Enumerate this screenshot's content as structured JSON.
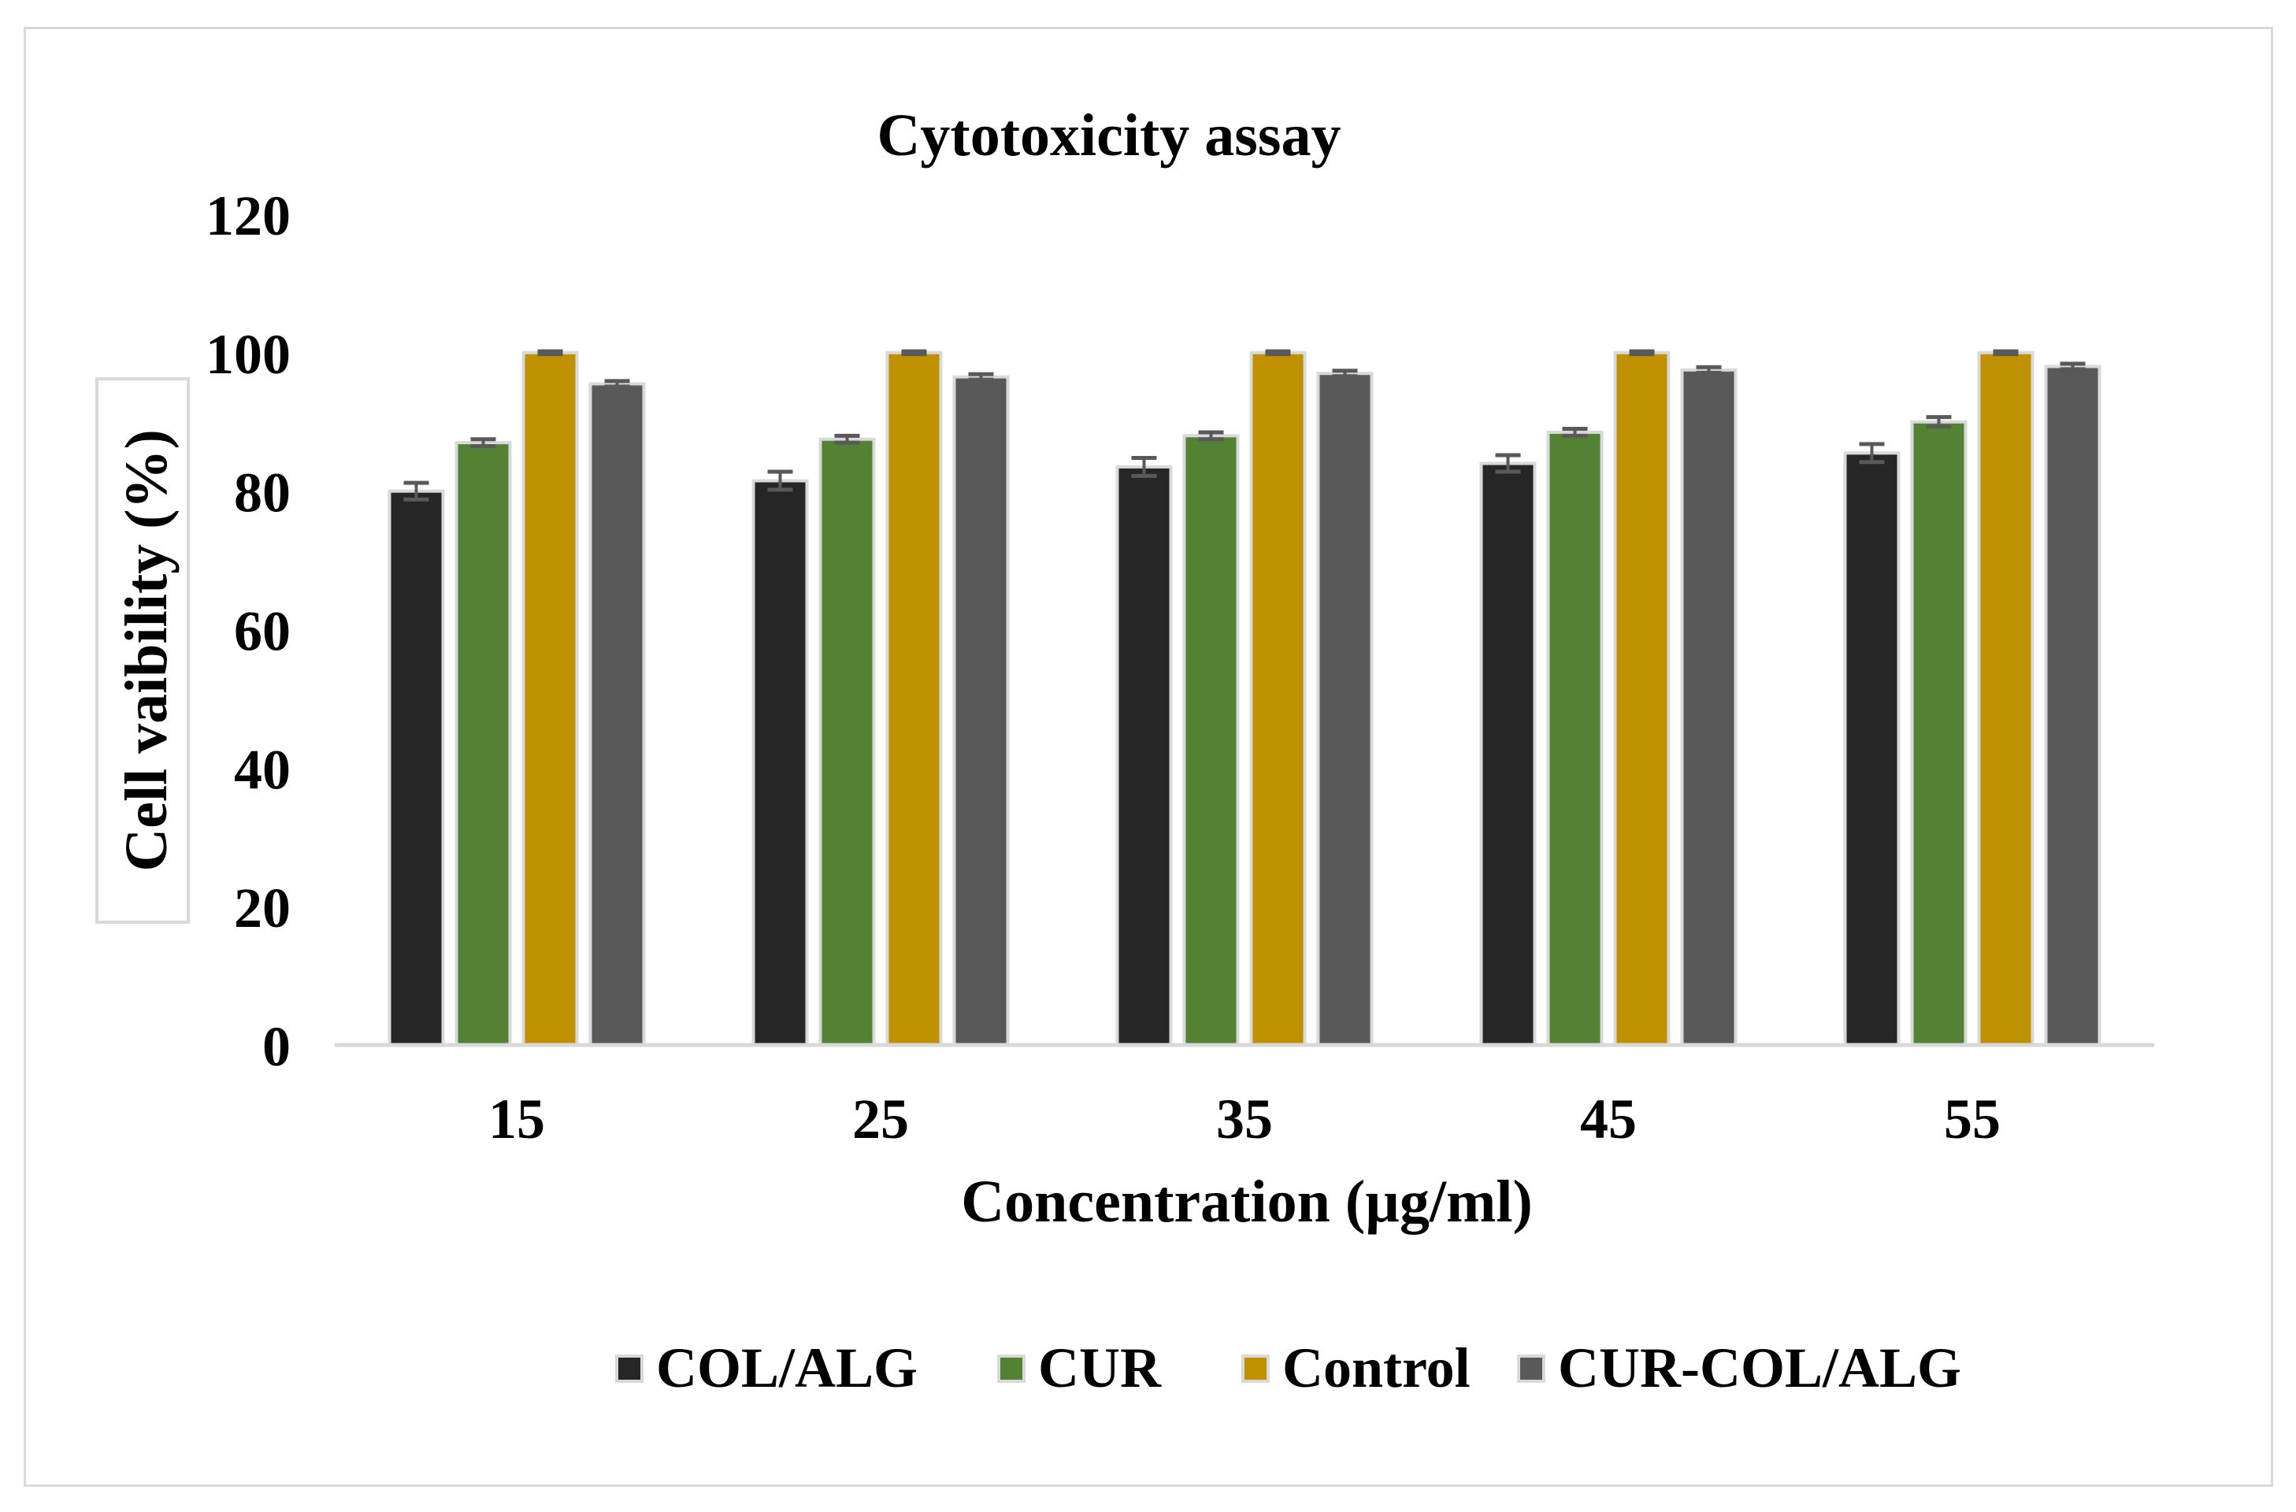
{
  "chart_data": {
    "type": "bar",
    "title": "Cytotoxicity assay",
    "xlabel": "Concentration (µg/ml)",
    "ylabel": "Cell vaibility (%)",
    "categories": [
      "15",
      "25",
      "35",
      "45",
      "55"
    ],
    "ylim": [
      0,
      120
    ],
    "yticks": [
      0,
      20,
      40,
      60,
      80,
      100,
      120
    ],
    "ytick_labels": [
      "0",
      "20",
      "40",
      "60",
      "80",
      "100",
      "120"
    ],
    "grid": false,
    "legend_position": "bottom",
    "series": [
      {
        "name": "COL/ALG",
        "color": "#262626",
        "values": [
          80,
          81.5,
          83.5,
          84,
          85.5
        ],
        "errors": [
          1.2,
          1.3,
          1.3,
          1.2,
          1.3
        ]
      },
      {
        "name": "CUR",
        "color": "#548235",
        "values": [
          87,
          87.5,
          88,
          88.5,
          90
        ],
        "errors": [
          0.5,
          0.5,
          0.5,
          0.5,
          0.7
        ]
      },
      {
        "name": "Control",
        "color": "#bf9000",
        "values": [
          100,
          100,
          100,
          100,
          100
        ],
        "errors": [
          0.2,
          0.2,
          0.2,
          0.2,
          0.2
        ]
      },
      {
        "name": "CUR-COL/ALG",
        "color": "#595959",
        "values": [
          95.5,
          96.5,
          97,
          97.5,
          98
        ],
        "errors": [
          0.4,
          0.4,
          0.4,
          0.4,
          0.4
        ]
      }
    ]
  }
}
